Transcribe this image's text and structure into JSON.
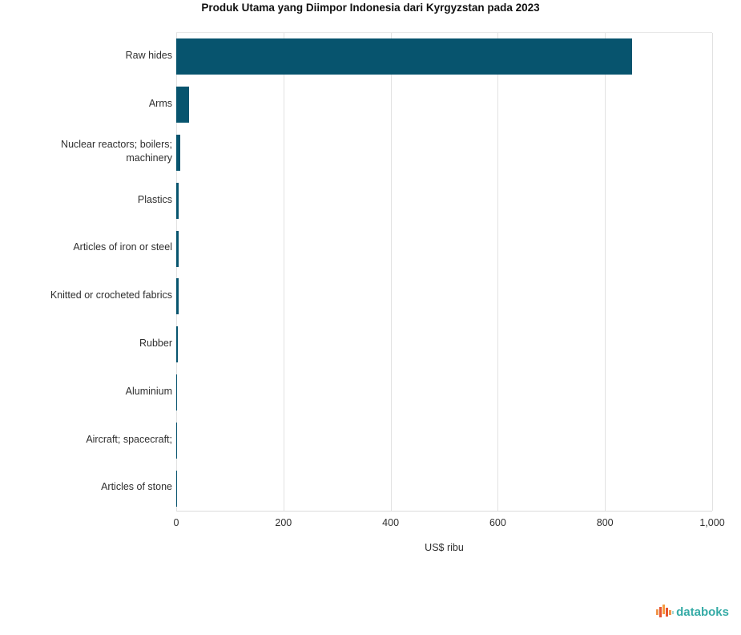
{
  "title": "Produk Utama yang Diimpor Indonesia dari Kyrgyzstan pada 2023",
  "chart_data": {
    "type": "bar",
    "orientation": "horizontal",
    "title": "Produk Utama yang Diimpor Indonesia dari Kyrgyzstan pada 2023",
    "categories": [
      "Raw hides",
      "Arms",
      "Nuclear reactors; boilers; machinery",
      "Plastics",
      "Articles of iron or steel",
      "Knitted or crocheted fabrics",
      "Rubber",
      "Aluminium",
      "Aircraft; spacecraft;",
      "Articles of stone"
    ],
    "values": [
      850,
      24,
      7,
      5,
      4,
      4,
      3,
      0.8,
      0.4,
      0.2
    ],
    "xlabel": "US$ ribu",
    "ylabel": "",
    "xlim": [
      0,
      1000
    ],
    "xticks": [
      0,
      200,
      400,
      600,
      800,
      1000
    ],
    "xtick_labels": [
      "0",
      "200",
      "400",
      "600",
      "800",
      "1,000"
    ],
    "grid": true,
    "legend": false,
    "bar_color": "#07546e",
    "gridline_color": "#e2e2e2"
  },
  "footer": {
    "brand": "databoks"
  },
  "colors": {
    "bar": "#07546e",
    "grid": "#e2e2e2",
    "title_text": "#111111",
    "label_text": "#2f2f2f",
    "logo_teal": "#35aba6",
    "logo_orange": "#f49b42",
    "logo_red": "#e85531",
    "logo_light_teal": "#9fd6d2"
  }
}
